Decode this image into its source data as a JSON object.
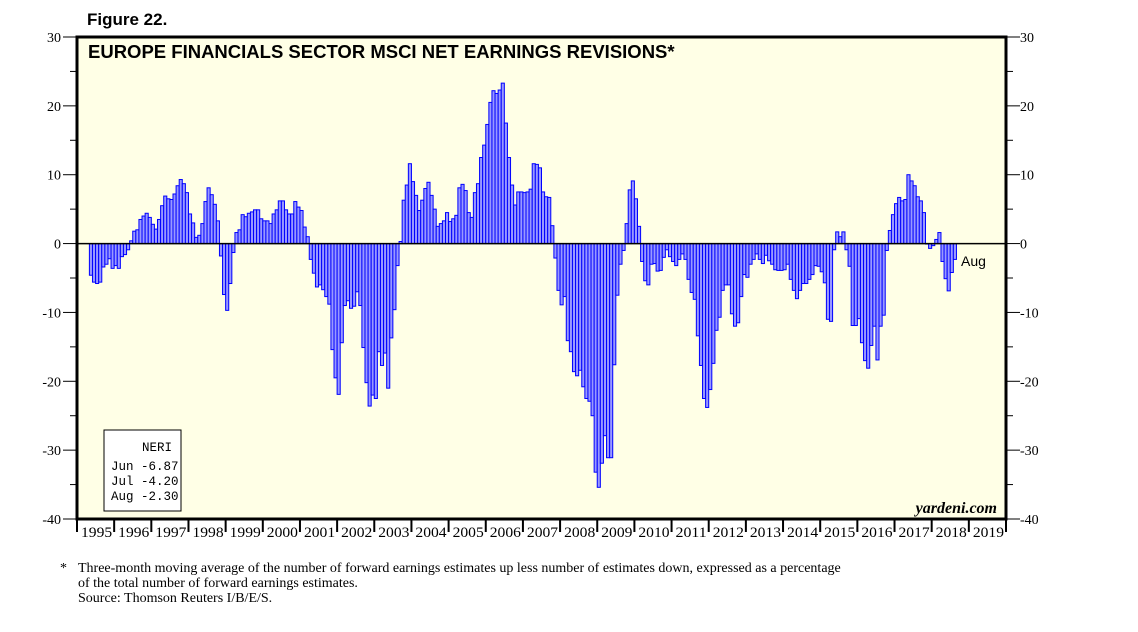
{
  "figure_label": "Figure 22.",
  "chart_data": {
    "type": "bar",
    "title": "EUROPE FINANCIALS SECTOR MSCI NET EARNINGS REVISIONS*",
    "frequency": "monthly",
    "end_period": "2018-08",
    "end_label": "Aug",
    "ylim": [
      -40,
      30
    ],
    "yticks": [
      "30",
      "20",
      "10",
      "0",
      "-10",
      "-20",
      "-30",
      "-40"
    ],
    "ytick_values": [
      30,
      20,
      10,
      0,
      -10,
      -20,
      -30,
      -40
    ],
    "xticks": [
      "1995",
      "1996",
      "1997",
      "1998",
      "1999",
      "2000",
      "2001",
      "2002",
      "2003",
      "2004",
      "2005",
      "2006",
      "2007",
      "2008",
      "2009",
      "2010",
      "2011",
      "2012",
      "2013",
      "2014",
      "2015",
      "2016",
      "2017",
      "2018",
      "2019"
    ],
    "xlabel": "",
    "ylabel": "",
    "grid": false,
    "series_name": "NERI",
    "values": [
      -4.6,
      -5.6,
      -5.8,
      -5.6,
      -3.4,
      -3.0,
      -2.2,
      -3.6,
      -3.2,
      -3.6,
      -1.9,
      -1.6,
      -0.9,
      0.4,
      1.8,
      2.0,
      3.5,
      4.0,
      4.4,
      3.8,
      2.8,
      2.1,
      3.5,
      5.5,
      6.9,
      6.5,
      6.4,
      7.2,
      8.4,
      9.3,
      8.7,
      7.4,
      4.3,
      3.0,
      0.9,
      1.2,
      2.9,
      6.1,
      8.1,
      7.1,
      5.7,
      3.3,
      -1.8,
      -7.4,
      -9.7,
      -5.8,
      -1.3,
      1.6,
      2.0,
      4.2,
      3.9,
      4.4,
      4.6,
      4.9,
      4.9,
      3.6,
      3.3,
      3.3,
      2.9,
      4.3,
      4.9,
      6.2,
      6.2,
      4.9,
      4.3,
      4.3,
      6.1,
      5.3,
      4.8,
      2.4,
      1.0,
      -2.3,
      -4.3,
      -6.3,
      -6.0,
      -6.7,
      -7.7,
      -8.8,
      -15.4,
      -19.5,
      -21.9,
      -14.4,
      -9.0,
      -8.3,
      -9.4,
      -9.1,
      -7.0,
      -9.0,
      -15.1,
      -20.2,
      -23.6,
      -22.0,
      -22.5,
      -15.7,
      -17.7,
      -15.9,
      -21.0,
      -13.7,
      -9.6,
      -3.2,
      0.3,
      6.3,
      8.5,
      11.6,
      9.0,
      7.0,
      4.8,
      6.3,
      8.0,
      8.9,
      7.0,
      5.0,
      2.5,
      2.9,
      3.3,
      4.5,
      3.2,
      3.6,
      4.1,
      8.1,
      8.6,
      7.7,
      4.5,
      3.8,
      7.4,
      8.7,
      12.5,
      14.3,
      17.3,
      20.5,
      22.2,
      21.8,
      22.3,
      23.3,
      17.5,
      12.5,
      8.5,
      5.6,
      7.5,
      7.5,
      7.4,
      7.5,
      7.9,
      11.6,
      11.5,
      11.0,
      7.5,
      6.8,
      6.7,
      2.6,
      -2.1,
      -6.8,
      -8.9,
      -7.7,
      -14.1,
      -15.7,
      -18.6,
      -19.2,
      -18.4,
      -20.8,
      -22.5,
      -22.9,
      -25.0,
      -33.2,
      -35.4,
      -31.9,
      -27.9,
      -31.1,
      -31.1,
      -17.6,
      -7.5,
      -3.0,
      -1.0,
      2.9,
      7.8,
      9.1,
      6.5,
      2.5,
      -2.6,
      -5.4,
      -6.0,
      -3.0,
      -2.9,
      -4.0,
      -3.9,
      -2.0,
      -0.9,
      -1.9,
      -2.6,
      -3.2,
      -2.3,
      -1.5,
      -2.3,
      -5.2,
      -7.1,
      -8.1,
      -13.4,
      -17.7,
      -22.5,
      -23.8,
      -21.2,
      -17.4,
      -12.6,
      -10.7,
      -6.8,
      -6.0,
      -6.0,
      -10.2,
      -12.0,
      -11.5,
      -7.7,
      -4.5,
      -4.9,
      -3.0,
      -2.3,
      -1.5,
      -2.3,
      -2.9,
      -1.7,
      -2.5,
      -3.0,
      -3.8,
      -3.9,
      -3.9,
      -3.8,
      -3.0,
      -5.2,
      -6.8,
      -8.0,
      -6.8,
      -5.8,
      -5.8,
      -5.2,
      -4.5,
      -3.2,
      -3.3,
      -4.1,
      -5.7,
      -11.0,
      -11.3,
      -0.9,
      1.7,
      1.0,
      1.7,
      -0.9,
      -3.3,
      -11.9,
      -11.9,
      -10.9,
      -14.4,
      -17.0,
      -18.1,
      -14.8,
      -12.0,
      -16.9,
      -12.0,
      -10.4,
      -1.0,
      1.9,
      4.2,
      5.8,
      6.7,
      6.2,
      6.4,
      10.0,
      9.1,
      8.4,
      6.8,
      6.2,
      4.5,
      0,
      -0.7,
      -0.3,
      0.6,
      1.6,
      -2.6,
      -5.1,
      -6.87,
      -4.2,
      -2.3
    ],
    "legend_box": {
      "title": "NERI",
      "rows": [
        "Jun -6.87",
        "Jul -4.20",
        "Aug -2.30"
      ]
    },
    "watermark": "yardeni.com",
    "colors": {
      "bar_fill": "#9999ff",
      "bar_stroke": "#0000ff",
      "plot_bg": "#ffffe6"
    }
  },
  "footnote": {
    "marker": "*",
    "line1": "Three-month moving average of the number of forward earnings estimates up less number of estimates down, expressed as a percentage",
    "line2": "of the total number of forward earnings estimates.",
    "source": "Source: Thomson Reuters I/B/E/S."
  }
}
